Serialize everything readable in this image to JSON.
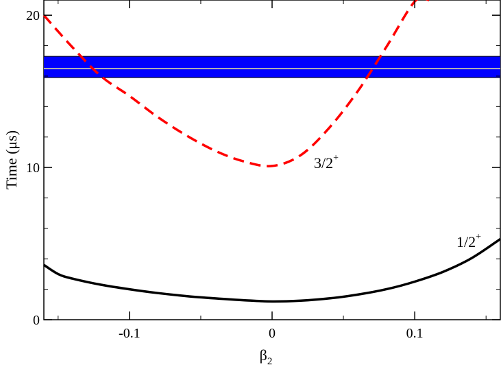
{
  "chart_data": {
    "type": "line",
    "xlabel": "β",
    "xlabel_sub": "2",
    "ylabel": "Time (μs)",
    "xlim": [
      -0.16,
      0.16
    ],
    "ylim": [
      0,
      21
    ],
    "x_ticks": [
      -0.1,
      0,
      0.1
    ],
    "x_tick_labels": [
      "-0.1",
      "0",
      "0.1"
    ],
    "y_ticks": [
      0,
      10,
      20
    ],
    "y_tick_labels": [
      "0",
      "10",
      "20"
    ],
    "grid": false,
    "band": {
      "y_low": 15.9,
      "y_high": 17.3,
      "y_center": 16.5,
      "fill_color": "#0000ff",
      "center_color": "#d8d8a0"
    },
    "series": [
      {
        "name": "3/2",
        "name_sup": "+",
        "color": "#ff0000",
        "style": "dashed",
        "x": [
          -0.16,
          -0.14,
          -0.12,
          -0.1,
          -0.08,
          -0.06,
          -0.04,
          -0.02,
          0.0,
          0.02,
          0.04,
          0.06,
          0.08,
          0.1,
          0.11
        ],
        "y": [
          20.0,
          17.9,
          16.0,
          14.7,
          13.3,
          12.1,
          11.1,
          10.4,
          10.1,
          10.8,
          12.6,
          15.0,
          17.9,
          20.9,
          21.0
        ]
      },
      {
        "name": "1/2",
        "name_sup": "+",
        "color": "#000000",
        "style": "solid",
        "x": [
          -0.16,
          -0.15,
          -0.14,
          -0.12,
          -0.1,
          -0.08,
          -0.06,
          -0.04,
          -0.02,
          0.0,
          0.02,
          0.04,
          0.06,
          0.08,
          0.1,
          0.12,
          0.14,
          0.16
        ],
        "y": [
          3.6,
          3.0,
          2.7,
          2.3,
          2.0,
          1.75,
          1.55,
          1.4,
          1.28,
          1.2,
          1.25,
          1.4,
          1.65,
          2.0,
          2.5,
          3.15,
          4.05,
          5.3
        ]
      }
    ]
  }
}
